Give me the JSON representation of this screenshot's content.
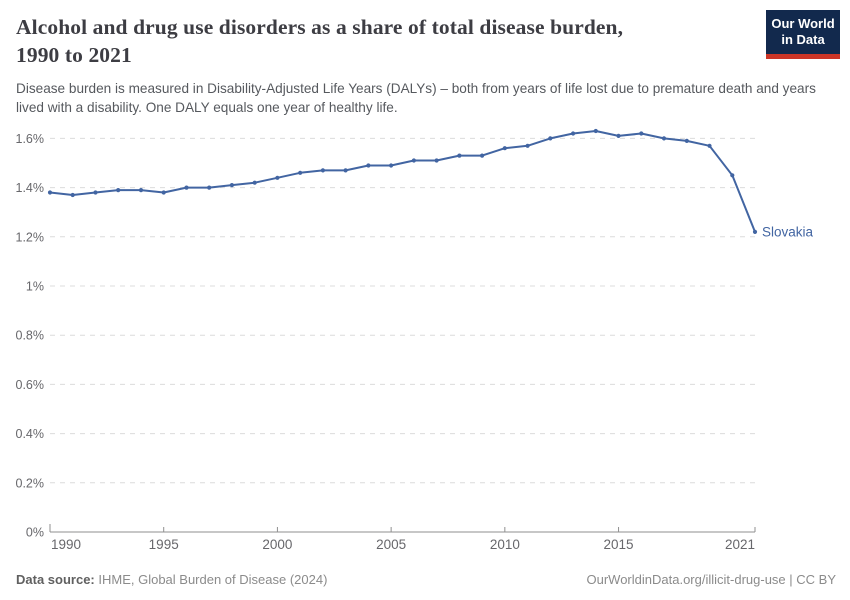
{
  "header": {
    "title_line1": "Alcohol and drug use disorders as a share of total disease burden,",
    "title_line2": "1990 to 2021",
    "subtitle": "Disease burden is measured in Disability-Adjusted Life Years (DALYs) – both from years of life lost due to premature death and years lived with a disability. One DALY equals one year of healthy life.",
    "logo": {
      "line1": "Our World",
      "line2": "in Data",
      "bg_color": "#12294d",
      "accent_color": "#cc3527"
    }
  },
  "footer": {
    "source_label": "Data source:",
    "source_text": " IHME, Global Burden of Disease (2024)",
    "credit": "OurWorldinData.org/illicit-drug-use | CC BY"
  },
  "chart_data": {
    "type": "line",
    "title": "Alcohol and drug use disorders as a share of total disease burden, 1990 to 2021",
    "xlabel": "",
    "ylabel": "",
    "x_range": [
      1990,
      2021
    ],
    "ylim": [
      0,
      1.7
    ],
    "grid": "horizontal-dashed",
    "legend_position": "end-of-line-label",
    "x_ticks": [
      1990,
      1995,
      2000,
      2005,
      2010,
      2015,
      2021
    ],
    "y_ticks": [
      0,
      0.2,
      0.4,
      0.6,
      0.8,
      1,
      1.2,
      1.4,
      1.6
    ],
    "y_tick_suffix": "%",
    "line_color": "#4265a2",
    "series": [
      {
        "name": "Slovakia",
        "x": [
          1990,
          1991,
          1992,
          1993,
          1994,
          1995,
          1996,
          1997,
          1998,
          1999,
          2000,
          2001,
          2002,
          2003,
          2004,
          2005,
          2006,
          2007,
          2008,
          2009,
          2010,
          2011,
          2012,
          2013,
          2014,
          2015,
          2016,
          2017,
          2018,
          2019,
          2020,
          2021
        ],
        "values": [
          1.38,
          1.37,
          1.38,
          1.39,
          1.39,
          1.38,
          1.4,
          1.4,
          1.41,
          1.42,
          1.44,
          1.46,
          1.47,
          1.47,
          1.49,
          1.49,
          1.51,
          1.51,
          1.53,
          1.53,
          1.56,
          1.57,
          1.6,
          1.62,
          1.63,
          1.61,
          1.62,
          1.6,
          1.59,
          1.57,
          1.45,
          1.22
        ]
      }
    ]
  }
}
